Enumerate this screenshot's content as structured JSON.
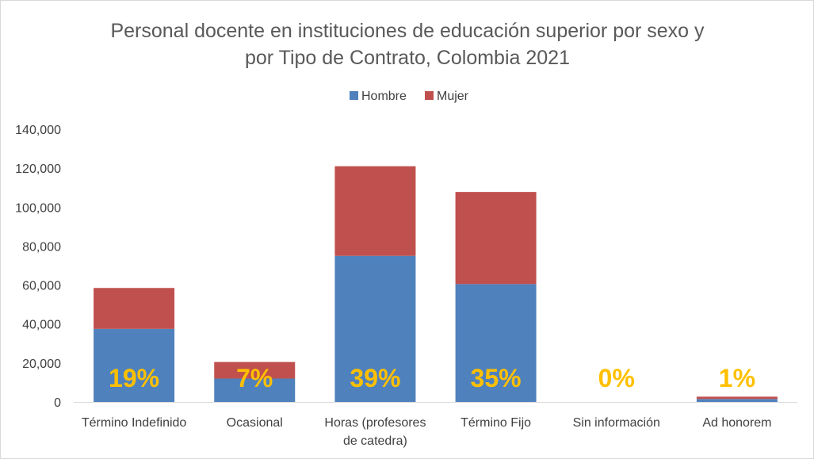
{
  "chart_data": {
    "type": "bar",
    "stacked": true,
    "title_lines": [
      "Personal docente en instituciones de educación superior por sexo y",
      "por Tipo de Contrato, Colombia 2021"
    ],
    "categories": [
      [
        "Término Indefinido"
      ],
      [
        "Ocasional"
      ],
      [
        "Horas (profesores",
        "de catedra)"
      ],
      [
        "Término Fijo"
      ],
      [
        "Sin información"
      ],
      [
        "Ad honorem"
      ]
    ],
    "series": [
      {
        "name": "Hombre",
        "color": "#4f81bd",
        "values": [
          37500,
          12000,
          75000,
          60500,
          0,
          1500
        ]
      },
      {
        "name": "Mujer",
        "color": "#c0504d",
        "values": [
          21000,
          8500,
          46000,
          47300,
          0,
          1200
        ]
      }
    ],
    "percent_labels": [
      "19%",
      "7%",
      "39%",
      "35%",
      "0%",
      "1%"
    ],
    "ylim": [
      0,
      140000
    ],
    "yticks": [
      "0",
      "20,000",
      "40,000",
      "60,000",
      "80,000",
      "100,000",
      "120,000",
      "140,000"
    ],
    "legend_position": "top-center",
    "grid": false
  }
}
